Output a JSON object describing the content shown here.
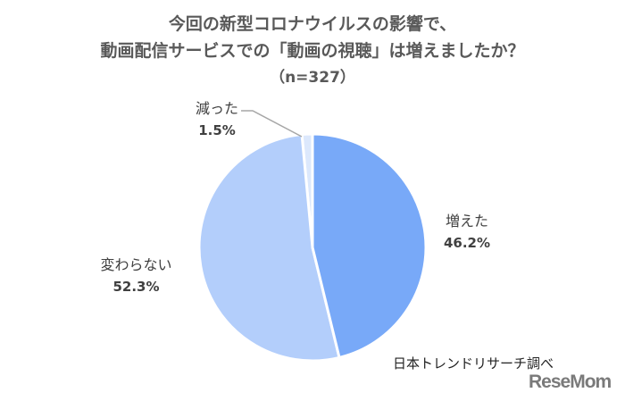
{
  "chart_data": {
    "type": "pie",
    "title_lines": [
      "今回の新型コロナウイルスの影響で、",
      "動画配信サービスでの「動画の視聴」は増えましたか？",
      "（n=327）"
    ],
    "slices": [
      {
        "label": "増えた",
        "value": 46.2,
        "value_label": "46.2%",
        "color": "#78a9f8"
      },
      {
        "label": "変わらない",
        "value": 52.3,
        "value_label": "52.3%",
        "color": "#b3cefb"
      },
      {
        "label": "減った",
        "value": 1.5,
        "value_label": "1.5%",
        "color": "#dce8fc"
      }
    ],
    "start": "12 o'clock",
    "direction": "clockwise"
  },
  "source": "日本トレンドリサーチ調べ",
  "logo": "ReseMom"
}
